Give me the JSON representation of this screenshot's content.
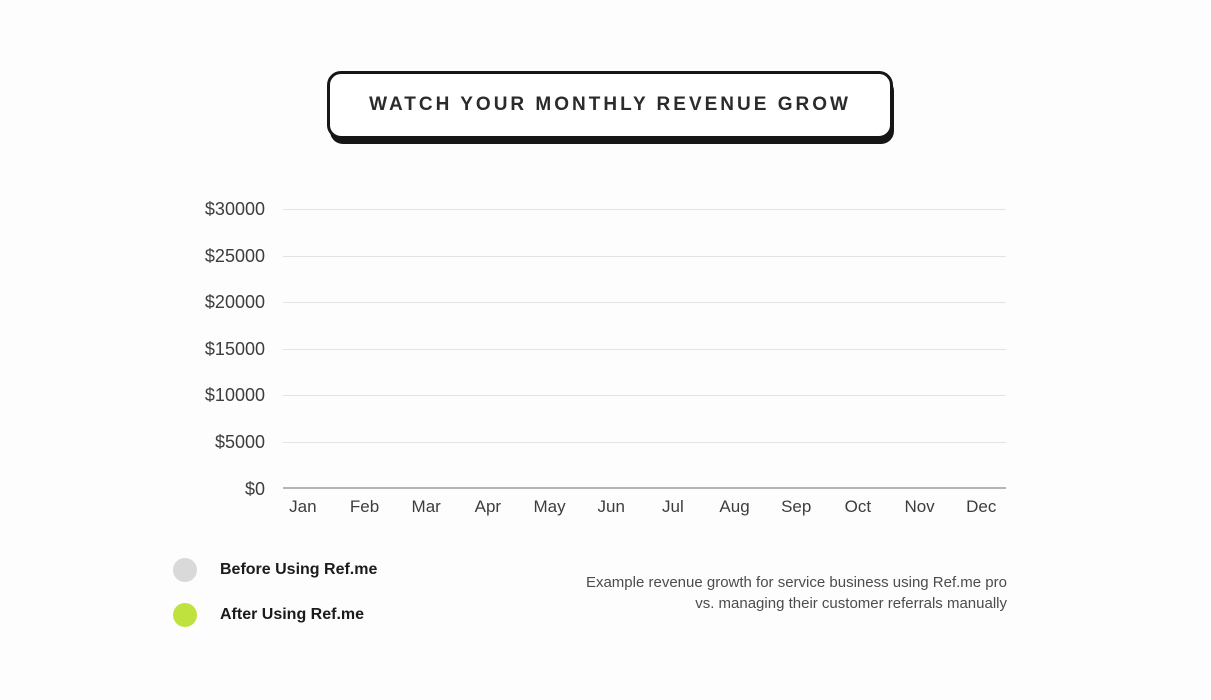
{
  "banner": {
    "title": "WATCH YOUR MONTHLY REVENUE GROW"
  },
  "chart_data": {
    "type": "line",
    "title": "",
    "xlabel": "",
    "ylabel": "",
    "categories": [
      "Jan",
      "Feb",
      "Mar",
      "Apr",
      "May",
      "Jun",
      "Jul",
      "Aug",
      "Sep",
      "Oct",
      "Nov",
      "Dec"
    ],
    "y_ticks": [
      30000,
      25000,
      20000,
      15000,
      10000,
      5000,
      0
    ],
    "y_tick_labels": [
      "$30000",
      "$25000",
      "$20000",
      "$15000",
      "$10000",
      "$5000",
      "$0"
    ],
    "ylim": [
      0,
      30000
    ],
    "grid": "horizontal",
    "legend_position": "bottom-left",
    "series": [
      {
        "name": "Before Using Ref.me",
        "color": "#d9d9da",
        "values": []
      },
      {
        "name": "After Using Ref.me",
        "color": "#bfe23e",
        "values": []
      }
    ]
  },
  "colors": {
    "gridline": "#e3e3e3",
    "axis_line": "#b5b5b5",
    "banner_border": "#161616",
    "accent_green": "#bfe23e",
    "neutral_gray": "#d9d9da"
  },
  "caption": {
    "line1": "Example revenue growth for service business using Ref.me pro",
    "line2": "vs. managing their customer referrals manually"
  }
}
